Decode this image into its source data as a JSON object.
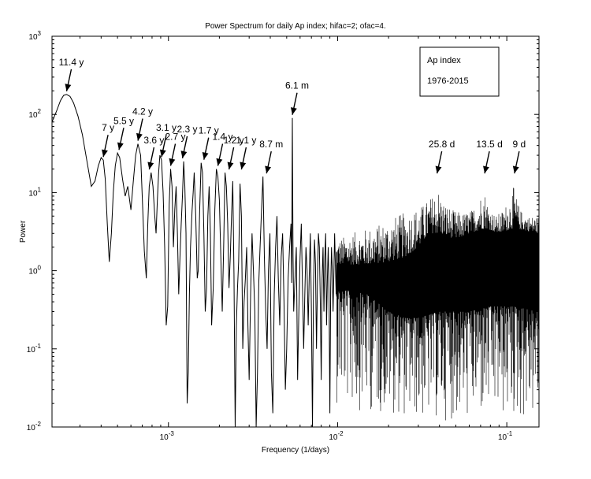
{
  "chart_data": {
    "type": "line",
    "title": "Power Spectrum for daily Ap index; hifac=2; ofac=4.",
    "xlabel": "Frequency (1/days)",
    "ylabel": "Power",
    "xscale": "log",
    "yscale": "log",
    "xlim": [
      0.000205,
      0.155
    ],
    "ylim": [
      0.01,
      1000
    ],
    "x_ticks": [
      {
        "value": 0.001,
        "base": "10",
        "exp": "-3"
      },
      {
        "value": 0.01,
        "base": "10",
        "exp": "-2"
      },
      {
        "value": 0.1,
        "base": "10",
        "exp": "-1"
      }
    ],
    "y_ticks": [
      {
        "value": 0.01,
        "base": "10",
        "exp": "-2"
      },
      {
        "value": 0.1,
        "base": "10",
        "exp": "-1"
      },
      {
        "value": 1,
        "base": "10",
        "exp": "0"
      },
      {
        "value": 10,
        "base": "10",
        "exp": "1"
      },
      {
        "value": 100,
        "base": "10",
        "exp": "2"
      },
      {
        "value": 1000,
        "base": "10",
        "exp": "3"
      }
    ],
    "grid": false,
    "legend": {
      "placement": "top-right",
      "lines": [
        "Ap index",
        "1976-2015"
      ]
    },
    "series": [
      {
        "color": "#000000",
        "x": [
          0.000205,
          0.000218,
          0.00023,
          0.00024,
          0.00025,
          0.000262,
          0.000275,
          0.000292,
          0.00031,
          0.00033,
          0.00035,
          0.000368,
          0.000385,
          0.0004,
          0.000412,
          0.000423,
          0.000435,
          0.000447,
          0.00046,
          0.000472,
          0.000485,
          0.0005,
          0.000515,
          0.000535,
          0.000555,
          0.000575,
          0.0006,
          0.00062,
          0.00064,
          0.00066,
          0.000685,
          0.0007,
          0.00072,
          0.00074,
          0.000755,
          0.00077,
          0.00079,
          0.00081,
          0.00083,
          0.000845,
          0.00086,
          0.000875,
          0.00089,
          0.00091,
          0.00093,
          0.00095,
          0.00097,
          0.00099,
          0.00101,
          0.00103,
          0.00105,
          0.00107,
          0.00109,
          0.00111,
          0.00113,
          0.00115,
          0.00117,
          0.00119,
          0.00121,
          0.00123,
          0.00125,
          0.00127,
          0.00129,
          0.00131,
          0.00133,
          0.00135,
          0.00138,
          0.0014,
          0.00142,
          0.00145,
          0.00148,
          0.0015,
          0.00153,
          0.00156,
          0.00159,
          0.00162,
          0.00165,
          0.00168,
          0.00171,
          0.00174,
          0.00177,
          0.0018,
          0.00184,
          0.00188,
          0.00192,
          0.00196,
          0.002,
          0.00204,
          0.00208,
          0.00212,
          0.00216,
          0.0022,
          0.00224,
          0.00228,
          0.00232,
          0.00236,
          0.0024,
          0.00244,
          0.00248,
          0.00252,
          0.00256,
          0.0026,
          0.00265,
          0.0027,
          0.00275,
          0.0028,
          0.00285,
          0.0029,
          0.00295,
          0.003,
          0.00306,
          0.00312,
          0.00318,
          0.00324,
          0.0033,
          0.00336,
          0.00342,
          0.00348,
          0.00355,
          0.00362,
          0.00369,
          0.00376,
          0.00383,
          0.0039,
          0.00398,
          0.00406,
          0.00414,
          0.00422,
          0.0043,
          0.00438,
          0.00446,
          0.00455,
          0.00464,
          0.00473,
          0.00482,
          0.00491,
          0.005,
          0.0051,
          0.0052,
          0.0053,
          0.00535,
          0.0054,
          0.00545,
          0.0055,
          0.0056,
          0.0057,
          0.0058,
          0.0059,
          0.006,
          0.0061,
          0.0062,
          0.0063,
          0.0064,
          0.0065,
          0.0066,
          0.0067,
          0.0068,
          0.0069,
          0.007,
          0.0071,
          0.0072,
          0.0073,
          0.0074,
          0.0075,
          0.0076,
          0.0077,
          0.0078,
          0.0079,
          0.008,
          0.0081,
          0.0082,
          0.0083,
          0.0084,
          0.0085,
          0.0086,
          0.0087,
          0.0088,
          0.0089,
          0.009,
          0.0091,
          0.0092,
          0.0093,
          0.0094,
          0.0095,
          0.0096,
          0.0097,
          0.0098
        ],
        "y": [
          80,
          110,
          150,
          175,
          180,
          170,
          140,
          95,
          55,
          25,
          12,
          14,
          22,
          28,
          26,
          15,
          4,
          1.3,
          3,
          10,
          22,
          32,
          28,
          15,
          9,
          12,
          6,
          14,
          30,
          42,
          30,
          9,
          1.8,
          0.8,
          4,
          12,
          18,
          12,
          5,
          3,
          8,
          18,
          30,
          26,
          10,
          2,
          0.2,
          0.35,
          7,
          20,
          12,
          2,
          6,
          12,
          3,
          0.5,
          1.5,
          4,
          9,
          25,
          12,
          3,
          0.02,
          0.05,
          0.5,
          2,
          6,
          10,
          18,
          5,
          0.8,
          1,
          6,
          24,
          18,
          3,
          0.3,
          0.6,
          5,
          12,
          3,
          0.2,
          0.6,
          6,
          20,
          16,
          8,
          1.5,
          0.3,
          2,
          18,
          12,
          4,
          0.6,
          1.5,
          5,
          14,
          0.9,
          0.01,
          0.2,
          0.6,
          1.3,
          13,
          5,
          0.1,
          0.4,
          0.8,
          2,
          0.2,
          0.04,
          0.5,
          3,
          1,
          0.3,
          0.008,
          0.05,
          0.7,
          2,
          6,
          16,
          1.5,
          0.3,
          0.1,
          1,
          3,
          0.05,
          0.015,
          0.5,
          2,
          5,
          0.8,
          0.2,
          1.5,
          3,
          0.4,
          0.03,
          0.1,
          0.8,
          2,
          4,
          0.7,
          90,
          1.5,
          0.3,
          0.8,
          2,
          0.04,
          0.3,
          1.5,
          4,
          0.6,
          0.1,
          0.5,
          2,
          1,
          0.2,
          0.9,
          3,
          0.3,
          0.01,
          0.6,
          2.5,
          1.2,
          0.1,
          0.7,
          3,
          2,
          0.4,
          0.04,
          0.8,
          2,
          0.3,
          1.5,
          3,
          0.2,
          0.8,
          2,
          0.5,
          0.015,
          0.6,
          2,
          1,
          0.3,
          0.9,
          3,
          1.2,
          0.5
        ]
      }
    ],
    "noise_band": {
      "from": 0.0098,
      "to": 0.155,
      "upper_envelope": [
        [
          0.0098,
          2.5
        ],
        [
          0.012,
          3
        ],
        [
          0.015,
          3.5
        ],
        [
          0.018,
          4
        ],
        [
          0.022,
          5
        ],
        [
          0.027,
          6
        ],
        [
          0.032,
          7
        ],
        [
          0.036,
          9
        ],
        [
          0.039,
          12
        ],
        [
          0.042,
          8
        ],
        [
          0.048,
          6
        ],
        [
          0.055,
          5.5
        ],
        [
          0.062,
          6
        ],
        [
          0.068,
          8
        ],
        [
          0.073,
          12
        ],
        [
          0.078,
          7
        ],
        [
          0.086,
          5
        ],
        [
          0.095,
          6
        ],
        [
          0.105,
          9
        ],
        [
          0.11,
          12
        ],
        [
          0.12,
          6
        ],
        [
          0.135,
          5
        ],
        [
          0.155,
          5
        ]
      ],
      "lower_envelope": [
        [
          0.0098,
          0.02
        ],
        [
          0.015,
          0.015
        ],
        [
          0.02,
          0.015
        ],
        [
          0.03,
          0.012
        ],
        [
          0.05,
          0.012
        ],
        [
          0.08,
          0.012
        ],
        [
          0.12,
          0.012
        ],
        [
          0.155,
          0.012
        ]
      ],
      "fill_lower": [
        [
          0.0098,
          0.6
        ],
        [
          0.015,
          0.5
        ],
        [
          0.02,
          0.3
        ],
        [
          0.025,
          0.25
        ],
        [
          0.03,
          0.25
        ],
        [
          0.04,
          0.3
        ],
        [
          0.06,
          0.3
        ],
        [
          0.08,
          0.35
        ],
        [
          0.11,
          0.35
        ],
        [
          0.155,
          0.3
        ]
      ],
      "fill_upper": [
        [
          0.0098,
          1.2
        ],
        [
          0.015,
          1.2
        ],
        [
          0.02,
          1.3
        ],
        [
          0.025,
          1.5
        ],
        [
          0.03,
          2
        ],
        [
          0.035,
          3
        ],
        [
          0.04,
          3
        ],
        [
          0.05,
          2.5
        ],
        [
          0.06,
          3
        ],
        [
          0.075,
          3.5
        ],
        [
          0.09,
          3
        ],
        [
          0.11,
          3.5
        ],
        [
          0.155,
          3
        ]
      ]
    },
    "annotations": [
      {
        "text": "11.4 y",
        "x": 0.00025,
        "y": 180
      },
      {
        "text": "7 y",
        "x": 0.000412,
        "y": 26
      },
      {
        "text": "5.5 y",
        "x": 0.00051,
        "y": 32
      },
      {
        "text": "4.2 y",
        "x": 0.00066,
        "y": 42
      },
      {
        "text": "3.6 y",
        "x": 0.00077,
        "y": 18
      },
      {
        "text": "3.1 y",
        "x": 0.00091,
        "y": 26
      },
      {
        "text": "2.7 y",
        "x": 0.00103,
        "y": 20
      },
      {
        "text": "2.3 y",
        "x": 0.00121,
        "y": 25
      },
      {
        "text": "1.7 y",
        "x": 0.00162,
        "y": 24
      },
      {
        "text": "1.4 y",
        "x": 0.00196,
        "y": 20
      },
      {
        "text": "1.2 y",
        "x": 0.00228,
        "y": 18
      },
      {
        "text": "1.1 y",
        "x": 0.0027,
        "y": 18
      },
      {
        "text": "8.7 m",
        "x": 0.0038,
        "y": 16
      },
      {
        "text": "6.1 m",
        "x": 0.0054,
        "y": 90
      },
      {
        "text": "25.8 d",
        "x": 0.0387,
        "y": 16
      },
      {
        "text": "13.5 d",
        "x": 0.074,
        "y": 16
      },
      {
        "text": "9 d",
        "x": 0.111,
        "y": 16
      }
    ]
  }
}
